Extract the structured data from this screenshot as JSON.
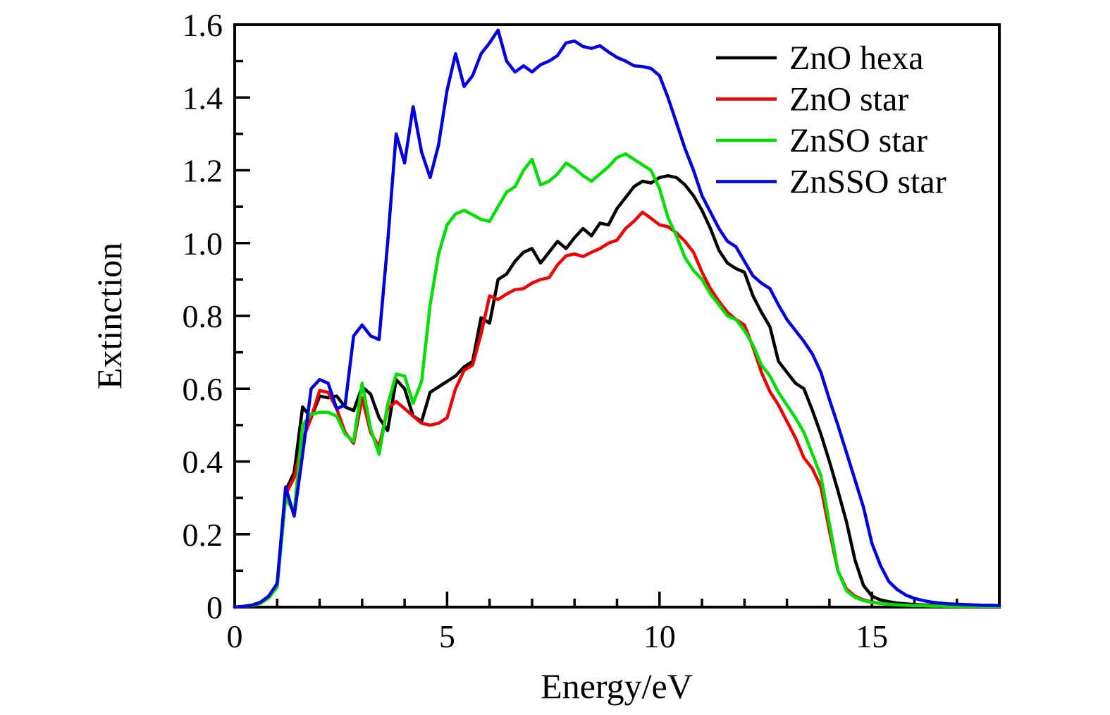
{
  "colors": {
    "background": "#ffffff",
    "axis": "#000000"
  },
  "chart_data": {
    "type": "line",
    "title": "",
    "xlabel": "Energy/eV",
    "ylabel": "Extinction",
    "xlim": [
      0,
      18
    ],
    "ylim": [
      0,
      1.6
    ],
    "grid": false,
    "legend_position": "top-right-inside",
    "x_ticks": {
      "major_values": [
        0,
        5,
        10,
        15
      ],
      "major_labels": [
        "0",
        "5",
        "10",
        "15"
      ],
      "minor_step": 1
    },
    "y_ticks": {
      "major_values": [
        0,
        0.2,
        0.4,
        0.6,
        0.8,
        1.0,
        1.2,
        1.4,
        1.6
      ],
      "major_labels": [
        "0",
        "0.2",
        "0.4",
        "0.6",
        "0.8",
        "1.0",
        "1.2",
        "1.4",
        "1.6"
      ],
      "minor_step": 0.1
    },
    "x": [
      0,
      0.2,
      0.4,
      0.6,
      0.8,
      1,
      1.2,
      1.4,
      1.6,
      1.8,
      2,
      2.2,
      2.4,
      2.6,
      2.8,
      3,
      3.2,
      3.4,
      3.6,
      3.8,
      4,
      4.2,
      4.4,
      4.6,
      4.8,
      5,
      5.2,
      5.4,
      5.6,
      5.8,
      6,
      6.2,
      6.4,
      6.6,
      6.8,
      7,
      7.2,
      7.4,
      7.6,
      7.8,
      8,
      8.2,
      8.4,
      8.6,
      8.8,
      9,
      9.2,
      9.4,
      9.6,
      9.8,
      10,
      10.2,
      10.4,
      10.6,
      10.8,
      11,
      11.2,
      11.4,
      11.6,
      11.8,
      12,
      12.2,
      12.4,
      12.6,
      12.8,
      13,
      13.2,
      13.4,
      13.6,
      13.8,
      14,
      14.2,
      14.4,
      14.6,
      14.8,
      15,
      15.2,
      15.4,
      15.6,
      15.8,
      16,
      16.2,
      16.4,
      16.6,
      16.8,
      17,
      17.2,
      17.4,
      17.6,
      17.8,
      18
    ],
    "series": [
      {
        "name": "ZnO hexa",
        "color": "#000000",
        "values": [
          0,
          0.002,
          0.005,
          0.012,
          0.028,
          0.065,
          0.32,
          0.37,
          0.55,
          0.52,
          0.58,
          0.575,
          0.58,
          0.55,
          0.54,
          0.605,
          0.585,
          0.52,
          0.485,
          0.625,
          0.6,
          0.525,
          0.51,
          0.59,
          0.605,
          0.62,
          0.635,
          0.66,
          0.675,
          0.795,
          0.78,
          0.9,
          0.915,
          0.95,
          0.975,
          0.985,
          0.945,
          0.975,
          1.005,
          0.985,
          1.015,
          1.04,
          1.02,
          1.055,
          1.05,
          1.095,
          1.125,
          1.155,
          1.17,
          1.165,
          1.18,
          1.185,
          1.18,
          1.16,
          1.13,
          1.09,
          1.04,
          0.98,
          0.945,
          0.93,
          0.92,
          0.855,
          0.81,
          0.77,
          0.675,
          0.645,
          0.615,
          0.6,
          0.54,
          0.475,
          0.4,
          0.32,
          0.235,
          0.13,
          0.06,
          0.03,
          0.02,
          0.015,
          0.011,
          0.009,
          0.007,
          0.006,
          0.005,
          0.005,
          0.004,
          0.004,
          0.003,
          0.003,
          0.003,
          0.002,
          0.002
        ]
      },
      {
        "name": "ZnO star",
        "color": "#ee0000",
        "values": [
          0,
          0.002,
          0.005,
          0.012,
          0.028,
          0.06,
          0.31,
          0.355,
          0.46,
          0.52,
          0.595,
          0.59,
          0.545,
          0.48,
          0.45,
          0.575,
          0.48,
          0.44,
          0.545,
          0.565,
          0.545,
          0.525,
          0.505,
          0.5,
          0.505,
          0.52,
          0.6,
          0.65,
          0.665,
          0.75,
          0.855,
          0.845,
          0.86,
          0.872,
          0.875,
          0.89,
          0.9,
          0.905,
          0.94,
          0.965,
          0.97,
          0.963,
          0.975,
          0.985,
          1.0,
          1.008,
          1.04,
          1.06,
          1.085,
          1.068,
          1.05,
          1.045,
          1.028,
          1.005,
          0.975,
          0.92,
          0.875,
          0.84,
          0.81,
          0.79,
          0.775,
          0.715,
          0.645,
          0.592,
          0.555,
          0.51,
          0.465,
          0.41,
          0.38,
          0.33,
          0.21,
          0.1,
          0.05,
          0.03,
          0.02,
          0.014,
          0.01,
          0.008,
          0.006,
          0.005,
          0.004,
          0.004,
          0.003,
          0.003,
          0.003,
          0.002,
          0.002,
          0.002,
          0.002,
          0.002,
          0.002
        ]
      },
      {
        "name": "ZnSO star",
        "color": "#00dd00",
        "values": [
          0,
          0.002,
          0.004,
          0.01,
          0.025,
          0.055,
          0.3,
          0.26,
          0.5,
          0.53,
          0.535,
          0.535,
          0.525,
          0.475,
          0.455,
          0.615,
          0.49,
          0.42,
          0.555,
          0.64,
          0.635,
          0.56,
          0.62,
          0.83,
          0.97,
          1.05,
          1.08,
          1.09,
          1.078,
          1.065,
          1.06,
          1.1,
          1.14,
          1.155,
          1.2,
          1.23,
          1.16,
          1.17,
          1.19,
          1.22,
          1.205,
          1.185,
          1.17,
          1.19,
          1.21,
          1.235,
          1.245,
          1.23,
          1.215,
          1.2,
          1.15,
          1.07,
          1.02,
          0.96,
          0.925,
          0.9,
          0.86,
          0.83,
          0.8,
          0.79,
          0.76,
          0.72,
          0.665,
          0.635,
          0.59,
          0.555,
          0.52,
          0.48,
          0.42,
          0.36,
          0.23,
          0.1,
          0.045,
          0.027,
          0.018,
          0.013,
          0.01,
          0.008,
          0.006,
          0.005,
          0.004,
          0.004,
          0.003,
          0.003,
          0.002,
          0.002,
          0.002,
          0.002,
          0.002,
          0.002,
          0.002
        ]
      },
      {
        "name": "ZnSSO star",
        "color": "#0000dd",
        "values": [
          0,
          0.002,
          0.005,
          0.013,
          0.03,
          0.065,
          0.33,
          0.25,
          0.42,
          0.6,
          0.625,
          0.615,
          0.545,
          0.555,
          0.745,
          0.775,
          0.745,
          0.735,
          1.0,
          1.3,
          1.22,
          1.375,
          1.25,
          1.18,
          1.27,
          1.42,
          1.52,
          1.43,
          1.46,
          1.52,
          1.55,
          1.585,
          1.5,
          1.47,
          1.487,
          1.47,
          1.49,
          1.5,
          1.515,
          1.55,
          1.555,
          1.54,
          1.535,
          1.542,
          1.525,
          1.51,
          1.5,
          1.487,
          1.485,
          1.48,
          1.46,
          1.4,
          1.33,
          1.26,
          1.2,
          1.13,
          1.085,
          1.04,
          1.005,
          0.99,
          0.95,
          0.91,
          0.89,
          0.875,
          0.83,
          0.79,
          0.76,
          0.73,
          0.695,
          0.645,
          0.57,
          0.5,
          0.425,
          0.35,
          0.275,
          0.175,
          0.115,
          0.07,
          0.048,
          0.033,
          0.024,
          0.018,
          0.014,
          0.011,
          0.009,
          0.008,
          0.007,
          0.006,
          0.005,
          0.005,
          0.004
        ]
      }
    ]
  }
}
